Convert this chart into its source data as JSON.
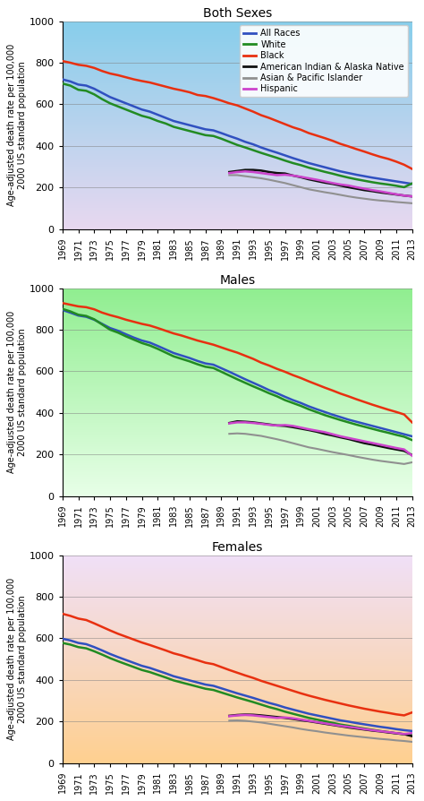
{
  "years_all": [
    1969,
    1970,
    1971,
    1972,
    1973,
    1974,
    1975,
    1976,
    1977,
    1978,
    1979,
    1980,
    1981,
    1982,
    1983,
    1984,
    1985,
    1986,
    1987,
    1988,
    1989,
    1990,
    1991,
    1992,
    1993,
    1994,
    1995,
    1996,
    1997,
    1998,
    1999,
    2000,
    2001,
    2002,
    2003,
    2004,
    2005,
    2006,
    2007,
    2008,
    2009,
    2010,
    2011,
    2012,
    2013
  ],
  "both_all_races": [
    720,
    710,
    695,
    690,
    675,
    655,
    635,
    620,
    605,
    590,
    575,
    565,
    550,
    535,
    520,
    510,
    500,
    490,
    480,
    475,
    462,
    448,
    435,
    420,
    408,
    393,
    380,
    368,
    355,
    342,
    330,
    318,
    308,
    298,
    288,
    278,
    270,
    262,
    255,
    248,
    242,
    236,
    230,
    224,
    218
  ],
  "both_white": [
    700,
    690,
    670,
    665,
    648,
    625,
    605,
    590,
    575,
    560,
    545,
    535,
    520,
    508,
    492,
    482,
    472,
    462,
    452,
    448,
    435,
    420,
    405,
    393,
    380,
    367,
    355,
    343,
    330,
    318,
    308,
    296,
    286,
    276,
    267,
    257,
    248,
    240,
    233,
    226,
    220,
    215,
    209,
    202,
    220
  ],
  "both_black": [
    808,
    800,
    790,
    785,
    775,
    760,
    748,
    740,
    730,
    720,
    712,
    705,
    695,
    685,
    675,
    667,
    658,
    645,
    640,
    630,
    618,
    605,
    595,
    580,
    565,
    548,
    535,
    520,
    505,
    490,
    478,
    462,
    450,
    438,
    425,
    410,
    398,
    385,
    373,
    360,
    348,
    338,
    325,
    310,
    290
  ],
  "both_aian": [
    null,
    null,
    null,
    null,
    null,
    null,
    null,
    null,
    null,
    null,
    null,
    null,
    null,
    null,
    null,
    null,
    null,
    null,
    null,
    null,
    null,
    275,
    280,
    285,
    285,
    282,
    275,
    270,
    268,
    258,
    250,
    240,
    232,
    224,
    218,
    210,
    202,
    195,
    188,
    183,
    177,
    172,
    167,
    162,
    158
  ],
  "both_api": [
    null,
    null,
    null,
    null,
    null,
    null,
    null,
    null,
    null,
    null,
    null,
    null,
    null,
    null,
    null,
    null,
    null,
    null,
    null,
    null,
    null,
    260,
    260,
    255,
    250,
    245,
    238,
    230,
    222,
    212,
    202,
    192,
    185,
    178,
    172,
    165,
    158,
    152,
    147,
    142,
    138,
    135,
    131,
    128,
    125
  ],
  "both_hispanic": [
    null,
    null,
    null,
    null,
    null,
    null,
    null,
    null,
    null,
    null,
    null,
    null,
    null,
    null,
    null,
    null,
    null,
    null,
    null,
    null,
    null,
    270,
    275,
    278,
    275,
    270,
    265,
    260,
    262,
    258,
    252,
    245,
    238,
    230,
    222,
    215,
    210,
    202,
    195,
    188,
    182,
    175,
    168,
    162,
    158
  ],
  "male_all_races": [
    895,
    882,
    868,
    862,
    848,
    828,
    808,
    795,
    778,
    762,
    748,
    738,
    722,
    705,
    688,
    676,
    664,
    650,
    638,
    632,
    615,
    598,
    580,
    562,
    545,
    528,
    510,
    495,
    478,
    462,
    448,
    432,
    418,
    405,
    392,
    380,
    368,
    358,
    348,
    338,
    328,
    318,
    308,
    298,
    288
  ],
  "male_white": [
    900,
    888,
    872,
    866,
    850,
    825,
    800,
    786,
    768,
    752,
    736,
    724,
    708,
    690,
    672,
    660,
    648,
    634,
    622,
    616,
    598,
    580,
    562,
    545,
    528,
    512,
    495,
    480,
    462,
    448,
    434,
    418,
    404,
    390,
    378,
    366,
    355,
    344,
    334,
    324,
    314,
    305,
    295,
    286,
    270
  ],
  "male_black": [
    928,
    920,
    912,
    908,
    898,
    882,
    870,
    860,
    848,
    838,
    828,
    820,
    808,
    795,
    782,
    772,
    760,
    748,
    738,
    728,
    715,
    702,
    690,
    675,
    660,
    642,
    628,
    612,
    598,
    582,
    568,
    552,
    537,
    522,
    508,
    493,
    480,
    466,
    453,
    440,
    428,
    416,
    405,
    393,
    355
  ],
  "male_aian": [
    null,
    null,
    null,
    null,
    null,
    null,
    null,
    null,
    null,
    null,
    null,
    null,
    null,
    null,
    null,
    null,
    null,
    null,
    null,
    null,
    null,
    352,
    360,
    358,
    355,
    350,
    345,
    340,
    338,
    332,
    325,
    318,
    310,
    300,
    292,
    283,
    275,
    265,
    255,
    248,
    240,
    232,
    225,
    218,
    198
  ],
  "male_api": [
    null,
    null,
    null,
    null,
    null,
    null,
    null,
    null,
    null,
    null,
    null,
    null,
    null,
    null,
    null,
    null,
    null,
    null,
    null,
    null,
    null,
    300,
    302,
    300,
    295,
    290,
    282,
    274,
    265,
    255,
    245,
    235,
    228,
    220,
    212,
    205,
    198,
    190,
    183,
    176,
    170,
    165,
    160,
    155,
    163
  ],
  "male_hispanic": [
    null,
    null,
    null,
    null,
    null,
    null,
    null,
    null,
    null,
    null,
    null,
    null,
    null,
    null,
    null,
    null,
    null,
    null,
    null,
    null,
    null,
    350,
    355,
    355,
    352,
    348,
    343,
    340,
    342,
    338,
    330,
    322,
    315,
    308,
    298,
    288,
    280,
    272,
    264,
    256,
    248,
    240,
    232,
    225,
    195
  ],
  "female_all_races": [
    598,
    590,
    578,
    572,
    558,
    542,
    525,
    510,
    496,
    482,
    468,
    458,
    445,
    432,
    418,
    408,
    398,
    388,
    378,
    372,
    360,
    348,
    336,
    325,
    314,
    302,
    290,
    280,
    268,
    258,
    248,
    238,
    230,
    222,
    214,
    206,
    200,
    193,
    187,
    181,
    175,
    170,
    164,
    159,
    155
  ],
  "female_white": [
    578,
    570,
    558,
    552,
    538,
    522,
    505,
    490,
    476,
    462,
    448,
    438,
    425,
    412,
    398,
    388,
    378,
    368,
    358,
    352,
    340,
    328,
    316,
    305,
    294,
    282,
    270,
    260,
    248,
    238,
    228,
    218,
    210,
    202,
    194,
    186,
    180,
    173,
    167,
    161,
    155,
    150,
    144,
    139,
    135
  ],
  "female_black": [
    718,
    708,
    695,
    688,
    672,
    655,
    638,
    622,
    608,
    594,
    580,
    568,
    555,
    542,
    528,
    518,
    506,
    495,
    483,
    476,
    462,
    448,
    435,
    422,
    410,
    396,
    384,
    372,
    360,
    348,
    336,
    325,
    315,
    305,
    296,
    287,
    278,
    270,
    262,
    255,
    248,
    242,
    235,
    230,
    244
  ],
  "female_aian": [
    null,
    null,
    null,
    null,
    null,
    null,
    null,
    null,
    null,
    null,
    null,
    null,
    null,
    null,
    null,
    null,
    null,
    null,
    null,
    null,
    null,
    228,
    232,
    234,
    233,
    230,
    226,
    222,
    218,
    213,
    207,
    202,
    196,
    190,
    184,
    178,
    172,
    167,
    162,
    157,
    153,
    148,
    144,
    140,
    130
  ],
  "female_api": [
    null,
    null,
    null,
    null,
    null,
    null,
    null,
    null,
    null,
    null,
    null,
    null,
    null,
    null,
    null,
    null,
    null,
    null,
    null,
    null,
    null,
    205,
    206,
    204,
    200,
    196,
    190,
    184,
    178,
    172,
    165,
    159,
    154,
    148,
    143,
    138,
    133,
    129,
    125,
    121,
    117,
    114,
    110,
    107,
    103
  ],
  "female_hispanic": [
    null,
    null,
    null,
    null,
    null,
    null,
    null,
    null,
    null,
    null,
    null,
    null,
    null,
    null,
    null,
    null,
    null,
    null,
    null,
    null,
    null,
    226,
    230,
    232,
    230,
    226,
    222,
    218,
    220,
    216,
    210,
    204,
    198,
    192,
    186,
    180,
    175,
    170,
    164,
    159,
    154,
    150,
    145,
    140,
    145
  ],
  "bg_both_top": "#87ceeb",
  "bg_both_bottom": "#e8d8f0",
  "bg_male_top": "#90ee90",
  "bg_male_bottom": "#e8ffe8",
  "bg_female_top": "#f0e0f8",
  "bg_female_bottom": "#ffd090",
  "line_colors": {
    "all_races": "#3050c0",
    "white": "#228B22",
    "black": "#e83010",
    "aian": "#101010",
    "api": "#909090",
    "hispanic": "#cc44cc"
  },
  "titles": [
    "Both Sexes",
    "Males",
    "Females"
  ],
  "ylabel": "Age-adjusted death rate per 100,000\n2000 US standard population",
  "ylim": [
    0,
    1000
  ],
  "yticks": [
    0,
    200,
    400,
    600,
    800,
    1000
  ],
  "legend_labels": [
    "All Races",
    "White",
    "Black",
    "American Indian & Alaska Native",
    "Asian & Pacific Islander",
    "Hispanic"
  ],
  "xtick_years": [
    1969,
    1971,
    1973,
    1975,
    1977,
    1979,
    1981,
    1983,
    1985,
    1987,
    1989,
    1991,
    1993,
    1995,
    1997,
    1999,
    2001,
    2003,
    2005,
    2007,
    2009,
    2011,
    2013
  ]
}
